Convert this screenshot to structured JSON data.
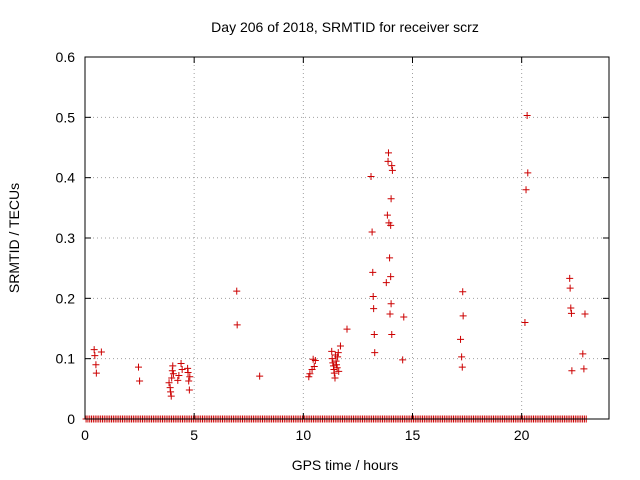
{
  "chart_data": {
    "type": "scatter",
    "title": "Day 206 of 2018, SRMTID for receiver scrz",
    "xlabel": "GPS time / hours",
    "ylabel": "SRMTID / TECUs",
    "xlim": [
      0,
      24
    ],
    "ylim": [
      0,
      0.6
    ],
    "xticks": [
      0,
      5,
      10,
      15,
      20
    ],
    "xtick_labels": [
      "0",
      "5",
      "10",
      "15",
      "20"
    ],
    "yticks": [
      0,
      0.1,
      0.2,
      0.3,
      0.4,
      0.5,
      0.6
    ],
    "ytick_labels": [
      "0",
      "0.1",
      "0.2",
      "0.3",
      "0.4",
      "0.5",
      "0.6"
    ],
    "grid": true,
    "marker": "+",
    "colors": {
      "points": "#cc0000",
      "grid": "#a0a0a0",
      "axes": "#000000"
    },
    "baseline": {
      "y": 0,
      "x_start": 0.05,
      "x_end": 23.0,
      "x_step": 0.0833
    },
    "points": [
      [
        0.42,
        0.115
      ],
      [
        0.45,
        0.105
      ],
      [
        0.5,
        0.09
      ],
      [
        0.52,
        0.076
      ],
      [
        0.75,
        0.111
      ],
      [
        2.45,
        0.086
      ],
      [
        2.5,
        0.063
      ],
      [
        3.85,
        0.06
      ],
      [
        3.9,
        0.052
      ],
      [
        3.92,
        0.045
      ],
      [
        3.95,
        0.038
      ],
      [
        3.97,
        0.068
      ],
      [
        4.0,
        0.08
      ],
      [
        4.02,
        0.088
      ],
      [
        4.05,
        0.075
      ],
      [
        4.25,
        0.064
      ],
      [
        4.3,
        0.072
      ],
      [
        4.4,
        0.092
      ],
      [
        4.45,
        0.082
      ],
      [
        4.7,
        0.084
      ],
      [
        4.72,
        0.077
      ],
      [
        4.75,
        0.063
      ],
      [
        4.78,
        0.048
      ],
      [
        4.8,
        0.07
      ],
      [
        6.95,
        0.212
      ],
      [
        6.97,
        0.156
      ],
      [
        8.0,
        0.071
      ],
      [
        10.25,
        0.07
      ],
      [
        10.3,
        0.075
      ],
      [
        10.4,
        0.082
      ],
      [
        10.45,
        0.099
      ],
      [
        10.5,
        0.087
      ],
      [
        10.55,
        0.097
      ],
      [
        11.3,
        0.112
      ],
      [
        11.32,
        0.1
      ],
      [
        11.35,
        0.093
      ],
      [
        11.38,
        0.088
      ],
      [
        11.4,
        0.082
      ],
      [
        11.42,
        0.076
      ],
      [
        11.45,
        0.068
      ],
      [
        11.47,
        0.106
      ],
      [
        11.5,
        0.096
      ],
      [
        11.52,
        0.09
      ],
      [
        11.55,
        0.085
      ],
      [
        11.57,
        0.103
      ],
      [
        11.6,
        0.11
      ],
      [
        11.62,
        0.079
      ],
      [
        11.7,
        0.121
      ],
      [
        12.0,
        0.149
      ],
      [
        13.1,
        0.402
      ],
      [
        13.15,
        0.31
      ],
      [
        13.18,
        0.243
      ],
      [
        13.2,
        0.203
      ],
      [
        13.22,
        0.183
      ],
      [
        13.25,
        0.14
      ],
      [
        13.27,
        0.11
      ],
      [
        13.8,
        0.226
      ],
      [
        13.85,
        0.338
      ],
      [
        13.88,
        0.427
      ],
      [
        13.9,
        0.441
      ],
      [
        13.92,
        0.325
      ],
      [
        13.95,
        0.267
      ],
      [
        13.97,
        0.174
      ],
      [
        14.0,
        0.321
      ],
      [
        14.02,
        0.365
      ],
      [
        14.05,
        0.42
      ],
      [
        14.08,
        0.412
      ],
      [
        14.0,
        0.236
      ],
      [
        14.02,
        0.191
      ],
      [
        14.05,
        0.14
      ],
      [
        14.6,
        0.169
      ],
      [
        14.55,
        0.098
      ],
      [
        17.2,
        0.132
      ],
      [
        17.25,
        0.103
      ],
      [
        17.28,
        0.086
      ],
      [
        17.3,
        0.211
      ],
      [
        17.32,
        0.171
      ],
      [
        20.15,
        0.16
      ],
      [
        20.2,
        0.38
      ],
      [
        20.25,
        0.503
      ],
      [
        20.28,
        0.408
      ],
      [
        22.2,
        0.233
      ],
      [
        22.22,
        0.217
      ],
      [
        22.25,
        0.184
      ],
      [
        22.28,
        0.175
      ],
      [
        22.3,
        0.08
      ],
      [
        22.8,
        0.108
      ],
      [
        22.85,
        0.083
      ],
      [
        22.9,
        0.174
      ]
    ]
  }
}
